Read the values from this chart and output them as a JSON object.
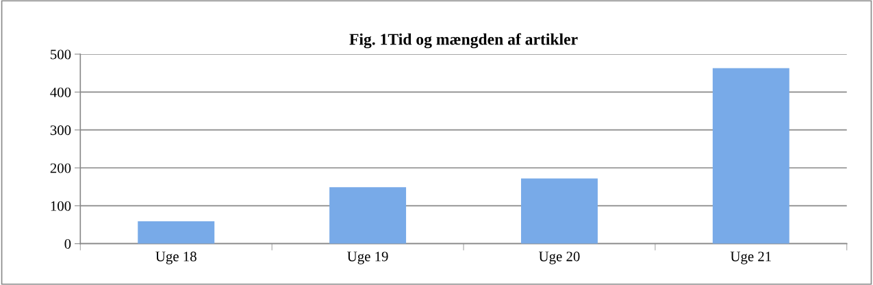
{
  "chart_data": {
    "type": "bar",
    "title": "Fig. 1Tid og mængden af artikler",
    "categories": [
      "Uge 18",
      "Uge 19",
      "Uge 20",
      "Uge 21"
    ],
    "values": [
      59,
      149,
      172,
      463
    ],
    "color": "#78aae8",
    "ylim": [
      0,
      500
    ],
    "yticks": [
      0,
      100,
      200,
      300,
      400,
      500
    ],
    "grid": "y",
    "legend": false
  }
}
